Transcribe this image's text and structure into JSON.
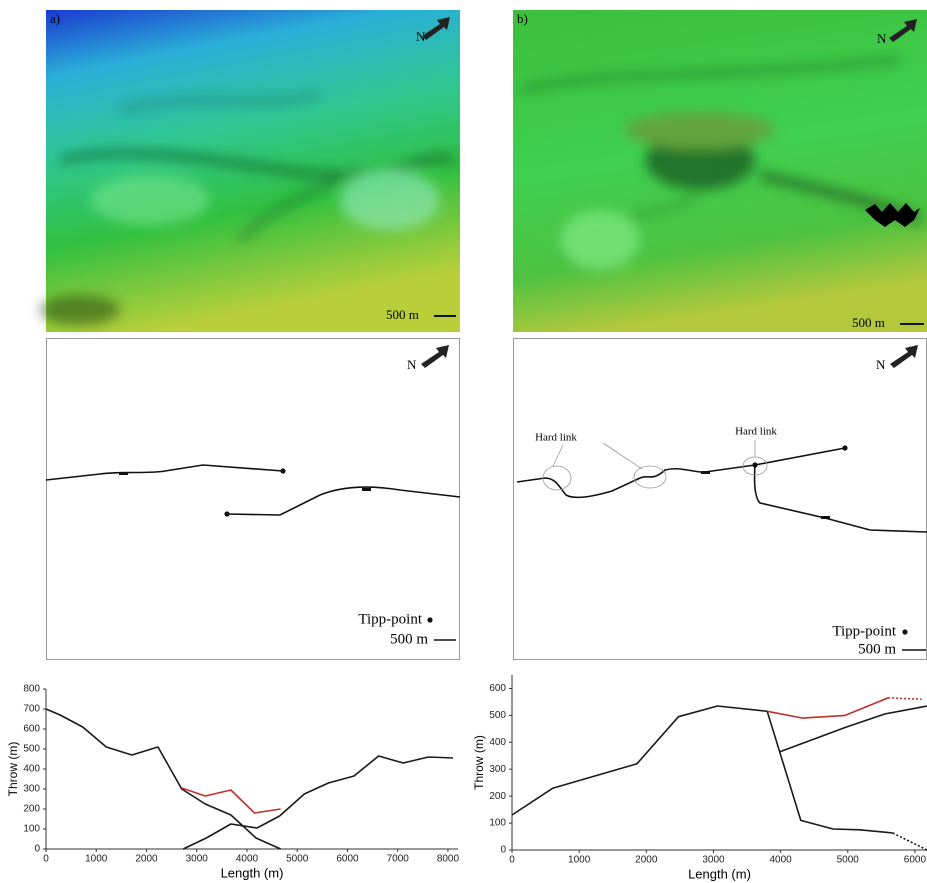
{
  "panels": [
    {
      "label": "a)",
      "north": "N",
      "scale": "500 m",
      "map": {
        "north": "N",
        "tipp_point": "Tipp-point",
        "scale": "500 m"
      }
    },
    {
      "label": "b)",
      "north": "N",
      "scale": "500 m",
      "map": {
        "north": "N",
        "tipp_point": "Tipp-point",
        "scale": "500 m",
        "annotations": [
          "Hard link",
          "Hard link"
        ]
      }
    }
  ],
  "chart_data": [
    {
      "type": "line",
      "y_label": "Throw (m)",
      "x_label": "Length (m)",
      "xlim": [
        0,
        8200
      ],
      "ylim": [
        0,
        800
      ],
      "xticks": [
        0,
        1000,
        2000,
        3000,
        4000,
        5000,
        6000,
        7000,
        8000
      ],
      "yticks": [
        0,
        100,
        200,
        300,
        400,
        500,
        600,
        700,
        800
      ],
      "series": [
        {
          "color": "#1a1a1a",
          "x": [
            0,
            280,
            730,
            1200,
            1710,
            2230,
            2700,
            3170,
            3680,
            4180,
            4670
          ],
          "values": [
            700,
            670,
            610,
            510,
            470,
            510,
            300,
            225,
            170,
            55,
            0
          ]
        },
        {
          "color": "#1a1a1a",
          "x": [
            2730,
            3190,
            3680,
            4200,
            4650,
            5140,
            5620,
            6130,
            6620,
            7110,
            7610,
            8100
          ],
          "values": [
            0,
            55,
            125,
            105,
            165,
            275,
            330,
            365,
            465,
            430,
            460,
            455
          ]
        },
        {
          "color": "#c0302a",
          "x": [
            2700,
            3170,
            3680,
            4150,
            4670
          ],
          "values": [
            305,
            265,
            295,
            180,
            200
          ]
        }
      ]
    },
    {
      "type": "line",
      "y_label": "Throw (m)",
      "x_label": "Length (m)",
      "xlim": [
        0,
        6180
      ],
      "ylim": [
        0,
        650
      ],
      "xticks": [
        0,
        1000,
        2000,
        3000,
        4000,
        5000,
        6000
      ],
      "yticks": [
        0,
        100,
        200,
        300,
        400,
        500,
        600
      ],
      "series": [
        {
          "color": "#1a1a1a",
          "x": [
            0,
            610,
            1860,
            2480,
            3060,
            3800,
            4300,
            4780,
            5180,
            5670
          ],
          "values": [
            130,
            230,
            320,
            495,
            535,
            515,
            110,
            78,
            75,
            63
          ]
        },
        {
          "color": "#1a1a1a",
          "dashed": true,
          "x": [
            5670,
            6180
          ],
          "values": [
            63,
            0
          ]
        },
        {
          "color": "#1a1a1a",
          "x": [
            3990,
            4960,
            5550,
            6180
          ],
          "values": [
            365,
            455,
            505,
            535
          ]
        },
        {
          "color": "#c0302a",
          "x": [
            3800,
            4330,
            4960,
            5600
          ],
          "values": [
            515,
            490,
            500,
            565
          ]
        },
        {
          "color": "#c0302a",
          "dashed": true,
          "x": [
            5600,
            6100
          ],
          "values": [
            565,
            560
          ]
        }
      ]
    }
  ]
}
